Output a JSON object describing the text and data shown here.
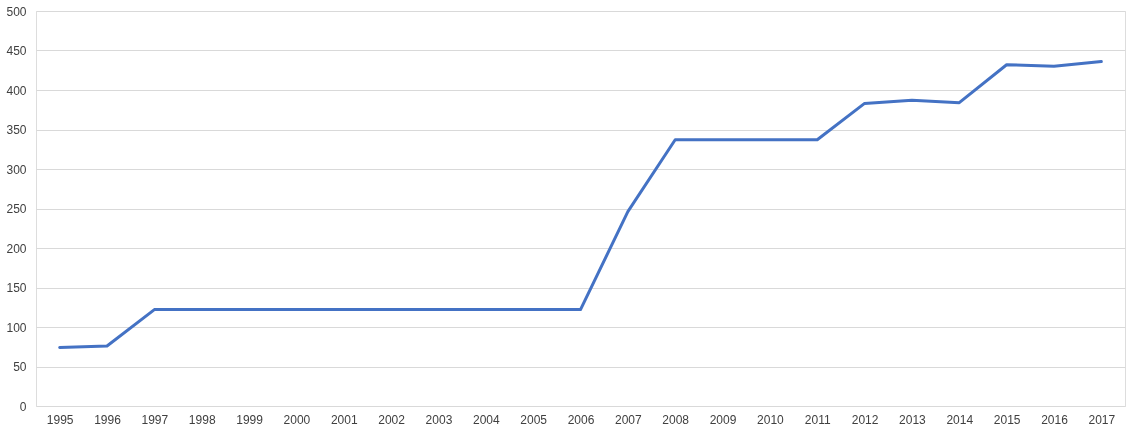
{
  "chart_data": {
    "type": "line",
    "categories": [
      "1995",
      "1996",
      "1997",
      "1998",
      "1999",
      "2000",
      "2001",
      "2002",
      "2003",
      "2004",
      "2005",
      "2006",
      "2007",
      "2008",
      "2009",
      "2010",
      "2011",
      "2012",
      "2013",
      "2014",
      "2015",
      "2016",
      "2017"
    ],
    "series": [
      {
        "color": "#4472c4",
        "values": [
          74,
          76,
          122,
          122,
          122,
          122,
          122,
          122,
          122,
          122,
          122,
          122,
          246,
          337,
          337,
          337,
          337,
          383,
          387,
          384,
          432,
          430,
          436
        ]
      }
    ],
    "ylim": [
      0,
      500
    ],
    "yticks": [
      0,
      50,
      100,
      150,
      200,
      250,
      300,
      350,
      400,
      450,
      500
    ],
    "grid": "y",
    "marker": "none",
    "line_style": "solid"
  }
}
